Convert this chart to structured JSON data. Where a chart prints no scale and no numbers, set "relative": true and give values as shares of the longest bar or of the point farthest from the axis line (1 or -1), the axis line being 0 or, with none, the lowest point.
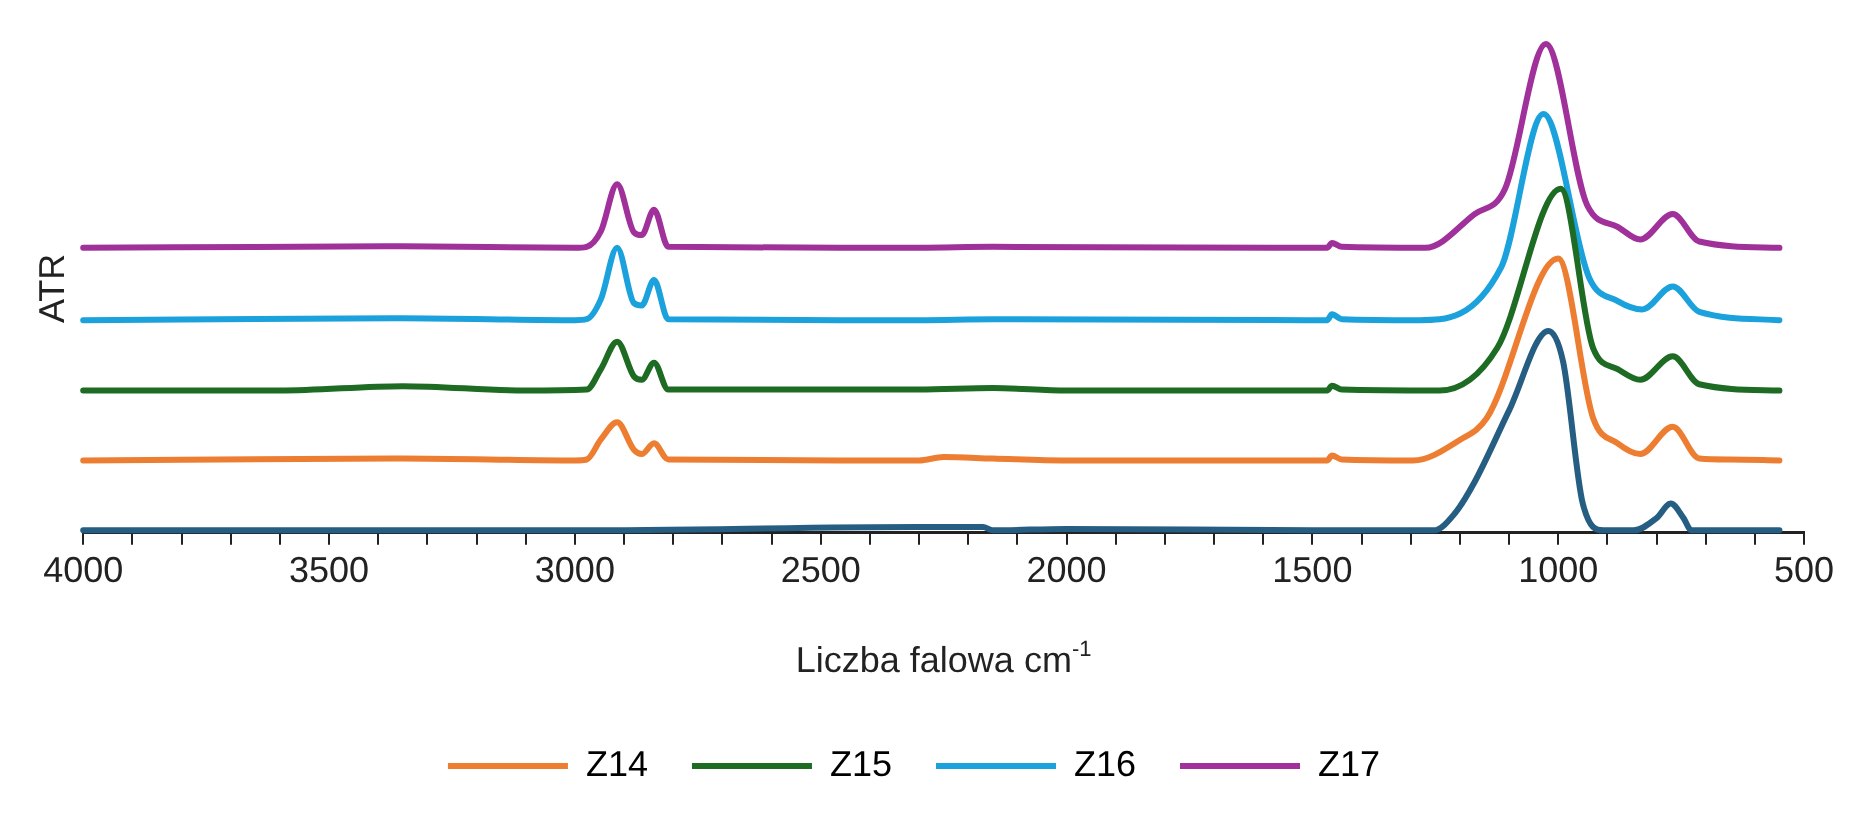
{
  "chart_data": {
    "type": "line",
    "relative": true,
    "xlabel": "Liczba falowa cm$^{-1}$",
    "ylabel": "ATR",
    "legend": "bottom",
    "grid": false,
    "marker": "none",
    "line_style": "solid",
    "xlim": [
      4000,
      500
    ],
    "xticks": [
      4000,
      {
        "value": 3900,
        "label": null
      },
      {
        "value": 3800,
        "label": null
      },
      {
        "value": 3700,
        "label": null
      },
      {
        "value": 3600,
        "label": null
      },
      3500,
      {
        "value": 3400,
        "label": null
      },
      {
        "value": 3300,
        "label": null
      },
      {
        "value": 3200,
        "label": null
      },
      {
        "value": 3100,
        "label": null
      },
      3000,
      {
        "value": 2900,
        "label": null
      },
      {
        "value": 2800,
        "label": null
      },
      {
        "value": 2700,
        "label": null
      },
      {
        "value": 2600,
        "label": null
      },
      2500,
      {
        "value": 2400,
        "label": null
      },
      {
        "value": 2300,
        "label": null
      },
      {
        "value": 2200,
        "label": null
      },
      {
        "value": 2100,
        "label": null
      },
      2000,
      {
        "value": 1900,
        "label": null
      },
      {
        "value": 1800,
        "label": null
      },
      {
        "value": 1700,
        "label": null
      },
      {
        "value": 1600,
        "label": null
      },
      1500,
      {
        "value": 1400,
        "label": null
      },
      {
        "value": 1300,
        "label": null
      },
      {
        "value": 1200,
        "label": null
      },
      {
        "value": 1100,
        "label": null
      },
      1000,
      {
        "value": 900,
        "label": null
      },
      {
        "value": 800,
        "label": null
      },
      {
        "value": 700,
        "label": null
      },
      {
        "value": 600,
        "label": null
      },
      500
    ],
    "series": [
      {
        "color": "#255e82",
        "x": [
          4000,
          3000,
          2300,
          2250,
          2170,
          2150,
          2000,
          1500,
          1253,
          1210,
          1170,
          1100,
          1020,
          990,
          950,
          908,
          846,
          800,
          771,
          745,
          729,
          550
        ],
        "values": [
          0.005,
          0.005,
          0.012,
          0.012,
          0.012,
          0.005,
          0.008,
          0.005,
          0.005,
          0.04,
          0.104,
          0.25,
          0.413,
          0.35,
          0.06,
          0.005,
          0.005,
          0.03,
          0.06,
          0.03,
          0.005,
          0.005
        ]
      },
      {
        "name": "Z14",
        "color": "#ed7d31",
        "x": [
          4000,
          3350,
          3000,
          2976,
          2947,
          2914,
          2880,
          2864,
          2839,
          2810,
          2300,
          2250,
          2150,
          2000,
          1470,
          1460,
          1440,
          1295,
          1200,
          1145,
          1000,
          929,
          879,
          833,
          767,
          713,
          650,
          550
        ],
        "values": [
          0.148,
          0.152,
          0.148,
          0.15,
          0.191,
          0.226,
          0.17,
          0.161,
          0.183,
          0.15,
          0.148,
          0.155,
          0.152,
          0.148,
          0.148,
          0.158,
          0.15,
          0.148,
          0.19,
          0.235,
          0.561,
          0.235,
          0.183,
          0.161,
          0.217,
          0.152,
          0.15,
          0.148
        ]
      },
      {
        "name": "Z15",
        "color": "#1e6b24",
        "x": [
          4000,
          3600,
          3350,
          3100,
          2976,
          2947,
          2914,
          2880,
          2864,
          2839,
          2810,
          2300,
          2150,
          2000,
          1470,
          1460,
          1440,
          1241,
          1124,
          995,
          929,
          879,
          833,
          767,
          713,
          550
        ],
        "values": [
          0.291,
          0.291,
          0.3,
          0.291,
          0.293,
          0.335,
          0.391,
          0.32,
          0.313,
          0.348,
          0.293,
          0.293,
          0.296,
          0.291,
          0.291,
          0.301,
          0.293,
          0.291,
          0.378,
          0.704,
          0.378,
          0.335,
          0.313,
          0.361,
          0.304,
          0.291
        ]
      },
      {
        "name": "Z16",
        "color": "#1ba1dc",
        "x": [
          4000,
          3350,
          3000,
          2976,
          2947,
          2914,
          2880,
          2864,
          2839,
          2810,
          2300,
          2150,
          1470,
          1460,
          1440,
          1283,
          1116,
          1030,
          937,
          879,
          829,
          767,
          713,
          550
        ],
        "values": [
          0.435,
          0.439,
          0.435,
          0.437,
          0.478,
          0.583,
          0.47,
          0.465,
          0.517,
          0.437,
          0.435,
          0.437,
          0.435,
          0.447,
          0.437,
          0.435,
          0.543,
          0.857,
          0.522,
          0.474,
          0.457,
          0.504,
          0.452,
          0.435
        ]
      },
      {
        "name": "Z17",
        "color": "#a0309a",
        "x": [
          4000,
          3350,
          3000,
          2976,
          2947,
          2914,
          2880,
          2864,
          2839,
          2810,
          2300,
          2150,
          1470,
          1460,
          1440,
          1270,
          1170,
          1108,
          1025,
          941,
          879,
          833,
          767,
          713,
          550
        ],
        "values": [
          0.583,
          0.586,
          0.583,
          0.585,
          0.617,
          0.713,
          0.615,
          0.609,
          0.661,
          0.585,
          0.583,
          0.585,
          0.583,
          0.593,
          0.585,
          0.583,
          0.652,
          0.704,
          1.0,
          0.67,
          0.626,
          0.6,
          0.652,
          0.596,
          0.583
        ]
      }
    ]
  }
}
